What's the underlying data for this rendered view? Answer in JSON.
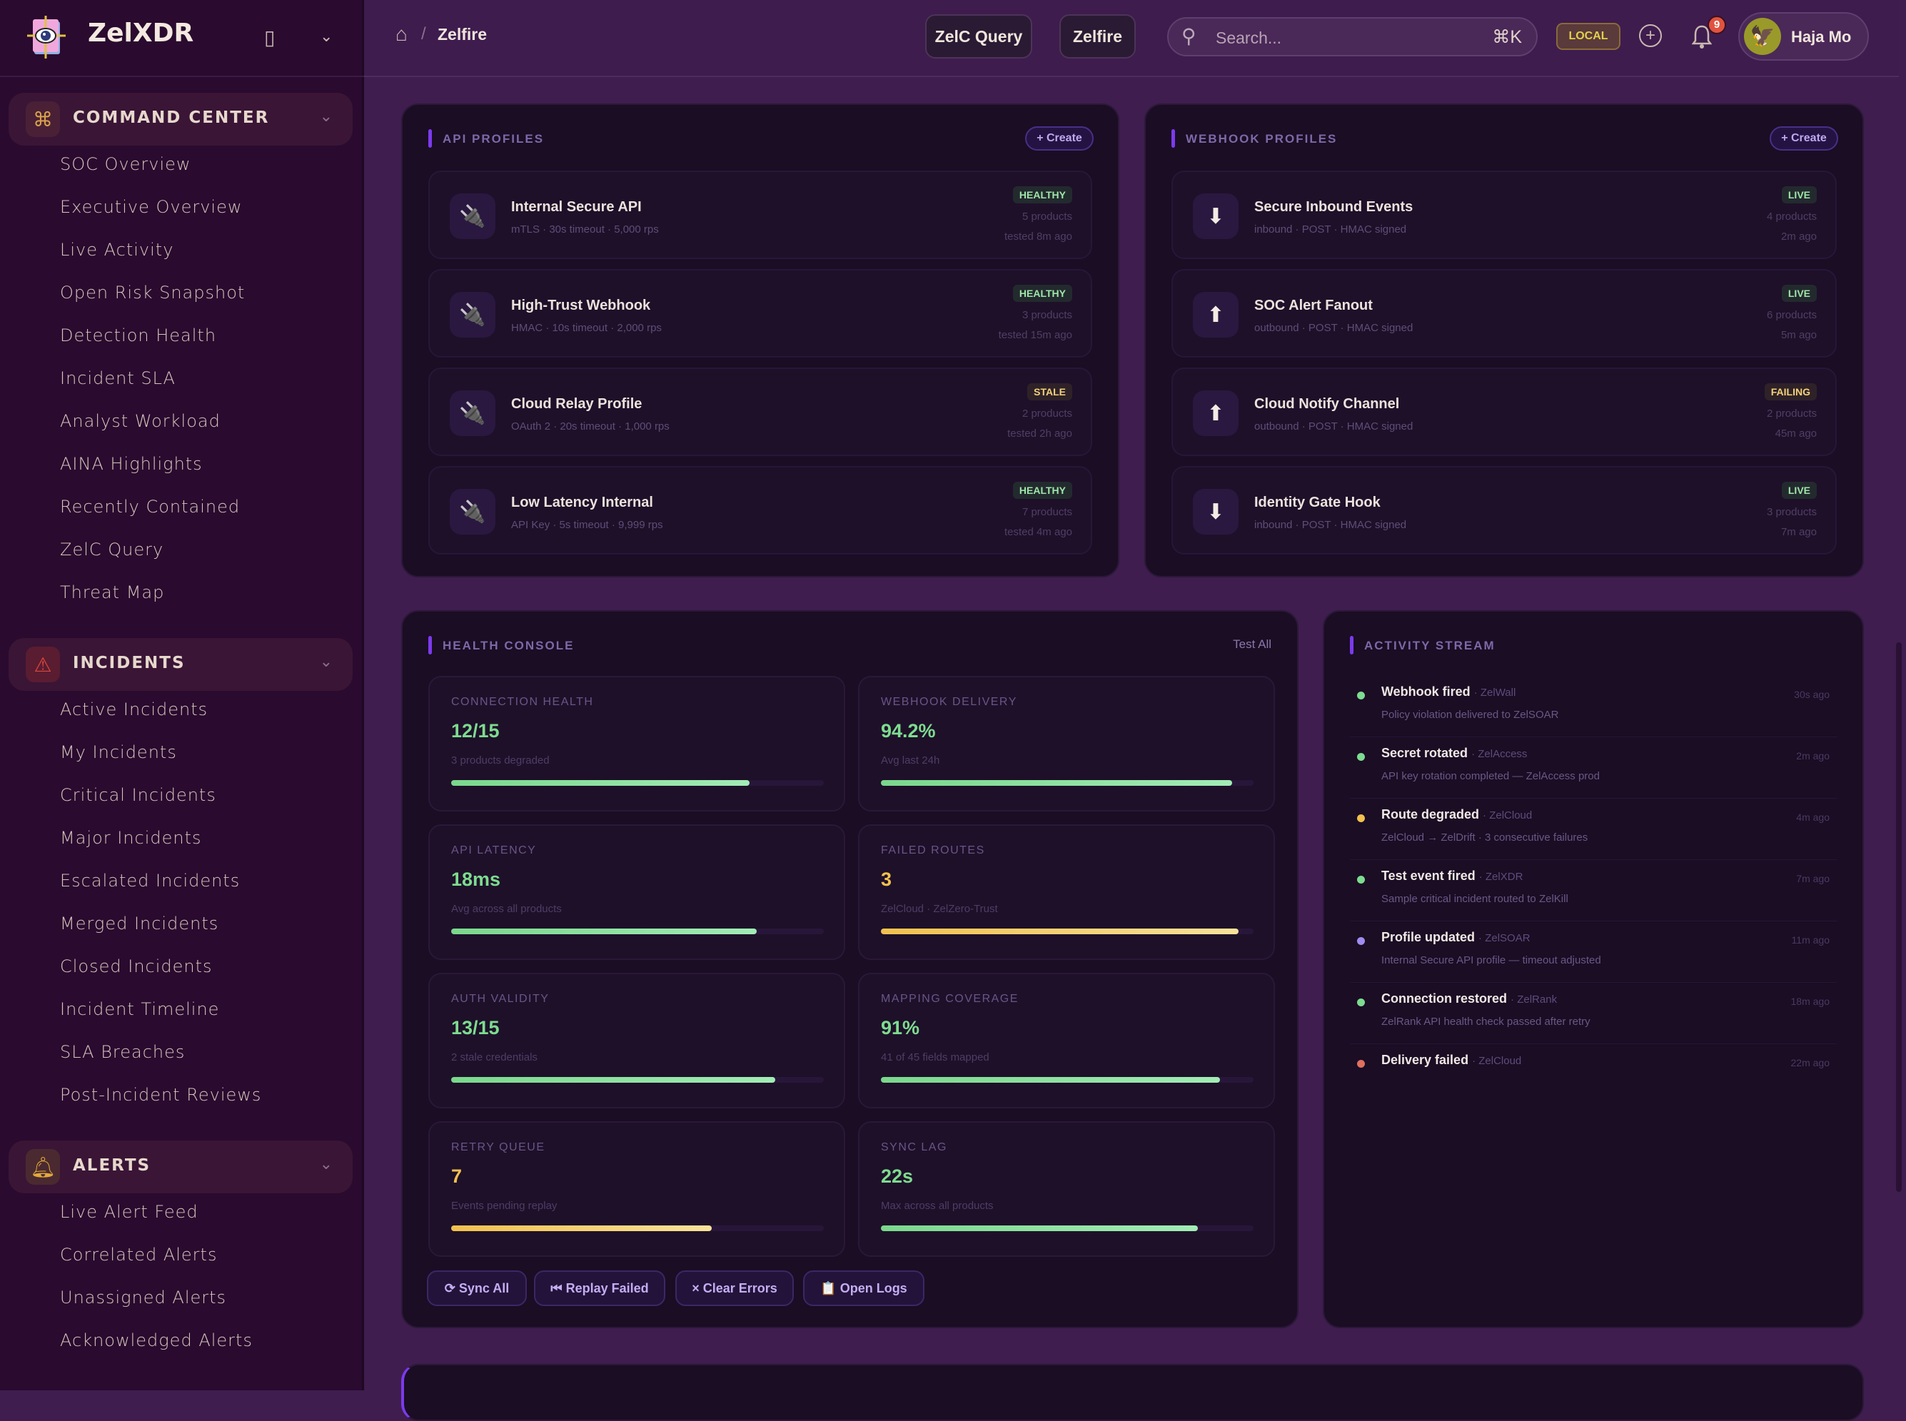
{
  "app": {
    "name": "ZelXDR"
  },
  "sidebar": {
    "sections": [
      {
        "label": "COMMAND CENTER",
        "icon": "command-icon",
        "color": "#d9a24a",
        "items": [
          "SOC Overview",
          "Executive Overview",
          "Live Activity",
          "Open Risk Snapshot",
          "Detection Health",
          "Incident SLA",
          "Analyst Workload",
          "AINA Highlights",
          "Recently Contained",
          "ZelC Query",
          "Threat Map"
        ]
      },
      {
        "label": "INCIDENTS",
        "icon": "warning-icon",
        "color": "#d9473f",
        "items": [
          "Active Incidents",
          "My Incidents",
          "Critical Incidents",
          "Major Incidents",
          "Escalated Incidents",
          "Merged Incidents",
          "Closed Incidents",
          "Incident Timeline",
          "SLA Breaches",
          "Post-Incident Reviews"
        ]
      },
      {
        "label": "ALERTS",
        "icon": "bell-icon",
        "color": "#e2a93c",
        "items": [
          "Live Alert Feed",
          "Correlated Alerts",
          "Unassigned Alerts",
          "Acknowledged Alerts"
        ]
      }
    ]
  },
  "header": {
    "breadcrumb": "Zelfire",
    "buttons": [
      "ZelC Query",
      "Zelfire"
    ],
    "search_placeholder": "Search...",
    "shortcut": "⌘K",
    "env": "LOCAL",
    "notifications": "9",
    "user": "Haja Mo"
  },
  "api_profiles": {
    "title": "API PROFILES",
    "create": "+ Create",
    "items": [
      {
        "name": "Internal Secure API",
        "sub": "mTLS · 30s timeout · 5,000 rps",
        "status": "HEALTHY",
        "products": "5 products",
        "tested": "tested 8m ago"
      },
      {
        "name": "High-Trust Webhook",
        "sub": "HMAC · 10s timeout · 2,000 rps",
        "status": "HEALTHY",
        "products": "3 products",
        "tested": "tested 15m ago"
      },
      {
        "name": "Cloud Relay Profile",
        "sub": "OAuth 2 · 20s timeout · 1,000 rps",
        "status": "STALE",
        "products": "2 products",
        "tested": "tested 2h ago"
      },
      {
        "name": "Low Latency Internal",
        "sub": "API Key · 5s timeout · 9,999 rps",
        "status": "HEALTHY",
        "products": "7 products",
        "tested": "tested 4m ago"
      }
    ]
  },
  "webhook_profiles": {
    "title": "WEBHOOK PROFILES",
    "create": "+ Create",
    "items": [
      {
        "name": "Secure Inbound Events",
        "sub": "inbound · POST · HMAC signed",
        "direction": "down",
        "status": "LIVE",
        "products": "4 products",
        "time": "2m ago"
      },
      {
        "name": "SOC Alert Fanout",
        "sub": "outbound · POST · HMAC signed",
        "direction": "up",
        "status": "LIVE",
        "products": "6 products",
        "time": "5m ago"
      },
      {
        "name": "Cloud Notify Channel",
        "sub": "outbound · POST · HMAC signed",
        "direction": "up",
        "status": "FAILING",
        "products": "2 products",
        "time": "45m ago"
      },
      {
        "name": "Identity Gate Hook",
        "sub": "inbound · POST · HMAC signed",
        "direction": "down",
        "status": "LIVE",
        "products": "3 products",
        "time": "7m ago"
      }
    ]
  },
  "health": {
    "title": "HEALTH CONSOLE",
    "test_all": "Test All",
    "tiles": [
      {
        "label": "CONNECTION HEALTH",
        "value": "12/15",
        "sub": "3 products degraded",
        "percent": 80,
        "tone": "green"
      },
      {
        "label": "WEBHOOK DELIVERY",
        "value": "94.2%",
        "sub": "Avg last 24h",
        "percent": 94.2,
        "tone": "green"
      },
      {
        "label": "API LATENCY",
        "value": "18ms",
        "sub": "Avg across all products",
        "percent": 82,
        "tone": "green"
      },
      {
        "label": "FAILED ROUTES",
        "value": "3",
        "sub": "ZelCloud · ZelZero-Trust",
        "percent": 96,
        "tone": "yellow"
      },
      {
        "label": "AUTH VALIDITY",
        "value": "13/15",
        "sub": "2 stale credentials",
        "percent": 87,
        "tone": "green"
      },
      {
        "label": "MAPPING COVERAGE",
        "value": "91%",
        "sub": "41 of 45 fields mapped",
        "percent": 91,
        "tone": "green"
      },
      {
        "label": "RETRY QUEUE",
        "value": "7",
        "sub": "Events pending replay",
        "percent": 70,
        "tone": "yellow"
      },
      {
        "label": "SYNC LAG",
        "value": "22s",
        "sub": "Max across all products",
        "percent": 85,
        "tone": "green"
      }
    ],
    "actions": [
      "⟳ Sync All",
      "⏮ Replay Failed",
      "× Clear Errors",
      "📋 Open Logs"
    ]
  },
  "activity": {
    "title": "ACTIVITY STREAM",
    "items": [
      {
        "title": "Webhook fired",
        "source": "· ZelWall",
        "desc": "Policy violation delivered to ZelSOAR",
        "time": "30s ago",
        "tone": "green"
      },
      {
        "title": "Secret rotated",
        "source": "· ZelAccess",
        "desc": "API key rotation completed — ZelAccess prod",
        "time": "2m ago",
        "tone": "green"
      },
      {
        "title": "Route degraded",
        "source": "· ZelCloud",
        "desc": "ZelCloud → ZelDrift · 3 consecutive failures",
        "time": "4m ago",
        "tone": "yellow"
      },
      {
        "title": "Test event fired",
        "source": "· ZelXDR",
        "desc": "Sample critical incident routed to ZelKill",
        "time": "7m ago",
        "tone": "green"
      },
      {
        "title": "Profile updated",
        "source": "· ZelSOAR",
        "desc": "Internal Secure API profile — timeout adjusted",
        "time": "11m ago",
        "tone": "purple"
      },
      {
        "title": "Connection restored",
        "source": "· ZelRank",
        "desc": "ZelRank API health check passed after retry",
        "time": "18m ago",
        "tone": "green"
      },
      {
        "title": "Delivery failed",
        "source": "· ZelCloud",
        "desc": "",
        "time": "22m ago",
        "tone": "red"
      }
    ]
  },
  "colors": {
    "green": "#7ddc8f",
    "yellow": "#f2c14e",
    "red": "#e0705f",
    "purple": "#a08cf0",
    "accent": "#7c3aed"
  }
}
